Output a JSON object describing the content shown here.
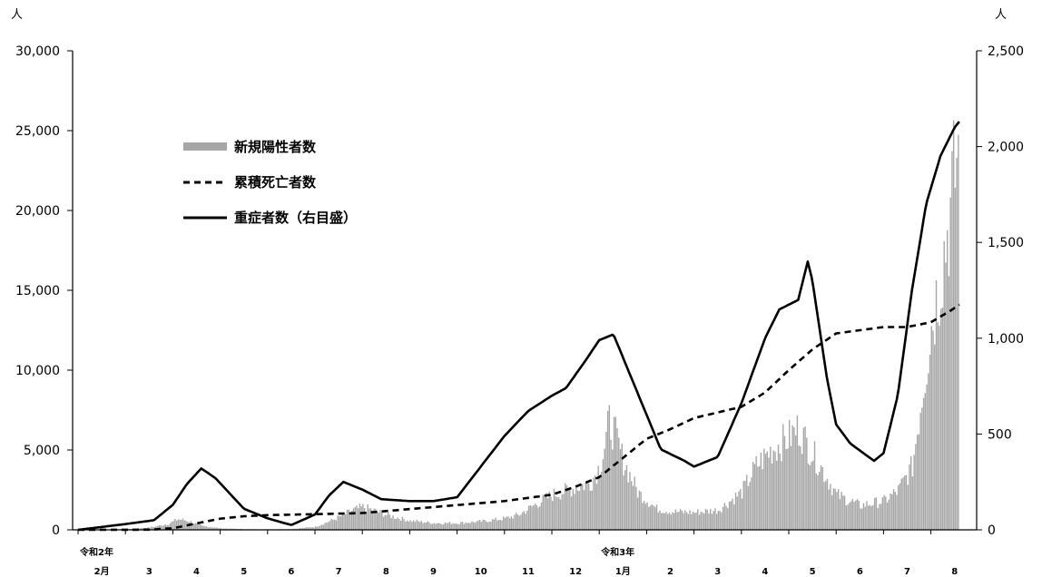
{
  "chart_data": {
    "type": "bar+line",
    "title": "",
    "units": {
      "left": "人",
      "right": "人"
    },
    "legend": {
      "placement": "upper-left",
      "items": [
        {
          "name": "新規陽性者数",
          "style": "bar",
          "color": "#a6a6a6"
        },
        {
          "name": "累積死亡者数",
          "style": "dashed-line",
          "color": "#000000"
        },
        {
          "name": "重症者数（右目盛）",
          "style": "solid-line",
          "color": "#000000"
        }
      ]
    },
    "x_axis": {
      "year_labels": [
        {
          "text": "令和2年",
          "at": 0
        },
        {
          "text": "令和3年",
          "at": 11
        }
      ],
      "months": [
        "2月",
        "3",
        "4",
        "5",
        "6",
        "7",
        "8",
        "9",
        "10",
        "11",
        "12",
        "1月",
        "2",
        "3",
        "4",
        "5",
        "6",
        "7",
        "8"
      ],
      "range_months": [
        0,
        18.6
      ]
    },
    "y_left": {
      "min": 0,
      "max": 30000,
      "ticks": [
        "0",
        "5,000",
        "10,000",
        "15,000",
        "20,000",
        "25,000",
        "30,000"
      ],
      "tick_values": [
        0,
        5000,
        10000,
        15000,
        20000,
        25000,
        30000
      ]
    },
    "y_right": {
      "min": 0,
      "max": 2500,
      "ticks": [
        "0",
        "500",
        "1,000",
        "1,500",
        "2,000",
        "2,500"
      ],
      "tick_values": [
        0,
        500,
        1000,
        1500,
        2000,
        2500
      ]
    },
    "series": [
      {
        "name": "新規陽性者数",
        "axis": "left",
        "points": [
          [
            0,
            0
          ],
          [
            1.0,
            50
          ],
          [
            1.5,
            150
          ],
          [
            1.9,
            400
          ],
          [
            2.1,
            700
          ],
          [
            2.3,
            600
          ],
          [
            2.6,
            250
          ],
          [
            3.0,
            100
          ],
          [
            3.5,
            40
          ],
          [
            4.0,
            30
          ],
          [
            4.5,
            50
          ],
          [
            5.0,
            200
          ],
          [
            5.4,
            700
          ],
          [
            5.8,
            1300
          ],
          [
            6.0,
            1500
          ],
          [
            6.3,
            1200
          ],
          [
            6.6,
            900
          ],
          [
            7.0,
            600
          ],
          [
            7.5,
            450
          ],
          [
            8.0,
            450
          ],
          [
            8.5,
            550
          ],
          [
            9.0,
            750
          ],
          [
            9.3,
            1000
          ],
          [
            9.6,
            1600
          ],
          [
            10.0,
            2300
          ],
          [
            10.5,
            2800
          ],
          [
            10.8,
            3100
          ],
          [
            11.0,
            4200
          ],
          [
            11.1,
            5500
          ],
          [
            11.2,
            7100
          ],
          [
            11.3,
            6500
          ],
          [
            11.5,
            4500
          ],
          [
            11.8,
            2500
          ],
          [
            12.2,
            1400
          ],
          [
            12.5,
            1200
          ],
          [
            13.0,
            1150
          ],
          [
            13.5,
            1300
          ],
          [
            14.0,
            2500
          ],
          [
            14.3,
            4200
          ],
          [
            14.6,
            5200
          ],
          [
            15.0,
            6100
          ],
          [
            15.2,
            6700
          ],
          [
            15.4,
            5500
          ],
          [
            15.6,
            4500
          ],
          [
            16.0,
            2300
          ],
          [
            16.5,
            1600
          ],
          [
            17.0,
            1900
          ],
          [
            17.3,
            2600
          ],
          [
            17.6,
            4200
          ],
          [
            17.8,
            9000
          ],
          [
            18.0,
            13500
          ],
          [
            18.2,
            17000
          ],
          [
            18.4,
            21000
          ],
          [
            18.5,
            23500
          ],
          [
            18.55,
            25000
          ],
          [
            18.6,
            24000
          ]
        ]
      },
      {
        "name": "累積死亡者数",
        "axis": "left",
        "points": [
          [
            0,
            0
          ],
          [
            1.5,
            10
          ],
          [
            2.0,
            100
          ],
          [
            3.0,
            700
          ],
          [
            3.5,
            850
          ],
          [
            4.0,
            920
          ],
          [
            5.0,
            980
          ],
          [
            6.0,
            1050
          ],
          [
            7.0,
            1300
          ],
          [
            8.0,
            1550
          ],
          [
            9.0,
            1800
          ],
          [
            10.0,
            2200
          ],
          [
            10.5,
            2700
          ],
          [
            11.0,
            3300
          ],
          [
            11.5,
            4500
          ],
          [
            12.0,
            5700
          ],
          [
            12.5,
            6300
          ],
          [
            13.0,
            7000
          ],
          [
            14.0,
            7700
          ],
          [
            14.5,
            8600
          ],
          [
            15.0,
            10000
          ],
          [
            15.5,
            11300
          ],
          [
            16.0,
            12300
          ],
          [
            16.5,
            12500
          ],
          [
            17.0,
            12700
          ],
          [
            17.5,
            12700
          ],
          [
            18.0,
            13000
          ],
          [
            18.4,
            13700
          ],
          [
            18.6,
            14100
          ]
        ]
      },
      {
        "name": "重症者数（右目盛）",
        "axis": "right",
        "points": [
          [
            0,
            0
          ],
          [
            1.0,
            30
          ],
          [
            1.6,
            50
          ],
          [
            2.0,
            130
          ],
          [
            2.3,
            240
          ],
          [
            2.6,
            320
          ],
          [
            2.9,
            270
          ],
          [
            3.2,
            190
          ],
          [
            3.5,
            110
          ],
          [
            4.0,
            60
          ],
          [
            4.5,
            25
          ],
          [
            5.0,
            80
          ],
          [
            5.3,
            180
          ],
          [
            5.6,
            250
          ],
          [
            6.0,
            210
          ],
          [
            6.4,
            160
          ],
          [
            7.0,
            150
          ],
          [
            7.5,
            150
          ],
          [
            8.0,
            170
          ],
          [
            8.5,
            330
          ],
          [
            9.0,
            490
          ],
          [
            9.5,
            620
          ],
          [
            10.0,
            700
          ],
          [
            10.3,
            740
          ],
          [
            10.7,
            880
          ],
          [
            11.0,
            990
          ],
          [
            11.3,
            1020
          ],
          [
            11.5,
            900
          ],
          [
            12.0,
            600
          ],
          [
            12.3,
            420
          ],
          [
            12.8,
            360
          ],
          [
            13.0,
            330
          ],
          [
            13.5,
            380
          ],
          [
            14.0,
            660
          ],
          [
            14.5,
            1000
          ],
          [
            14.8,
            1150
          ],
          [
            15.2,
            1200
          ],
          [
            15.4,
            1400
          ],
          [
            15.5,
            1300
          ],
          [
            15.8,
            800
          ],
          [
            16.0,
            550
          ],
          [
            16.3,
            450
          ],
          [
            16.8,
            360
          ],
          [
            17.0,
            400
          ],
          [
            17.3,
            700
          ],
          [
            17.6,
            1250
          ],
          [
            17.9,
            1700
          ],
          [
            18.2,
            1950
          ],
          [
            18.5,
            2100
          ],
          [
            18.6,
            2130
          ]
        ]
      }
    ]
  }
}
